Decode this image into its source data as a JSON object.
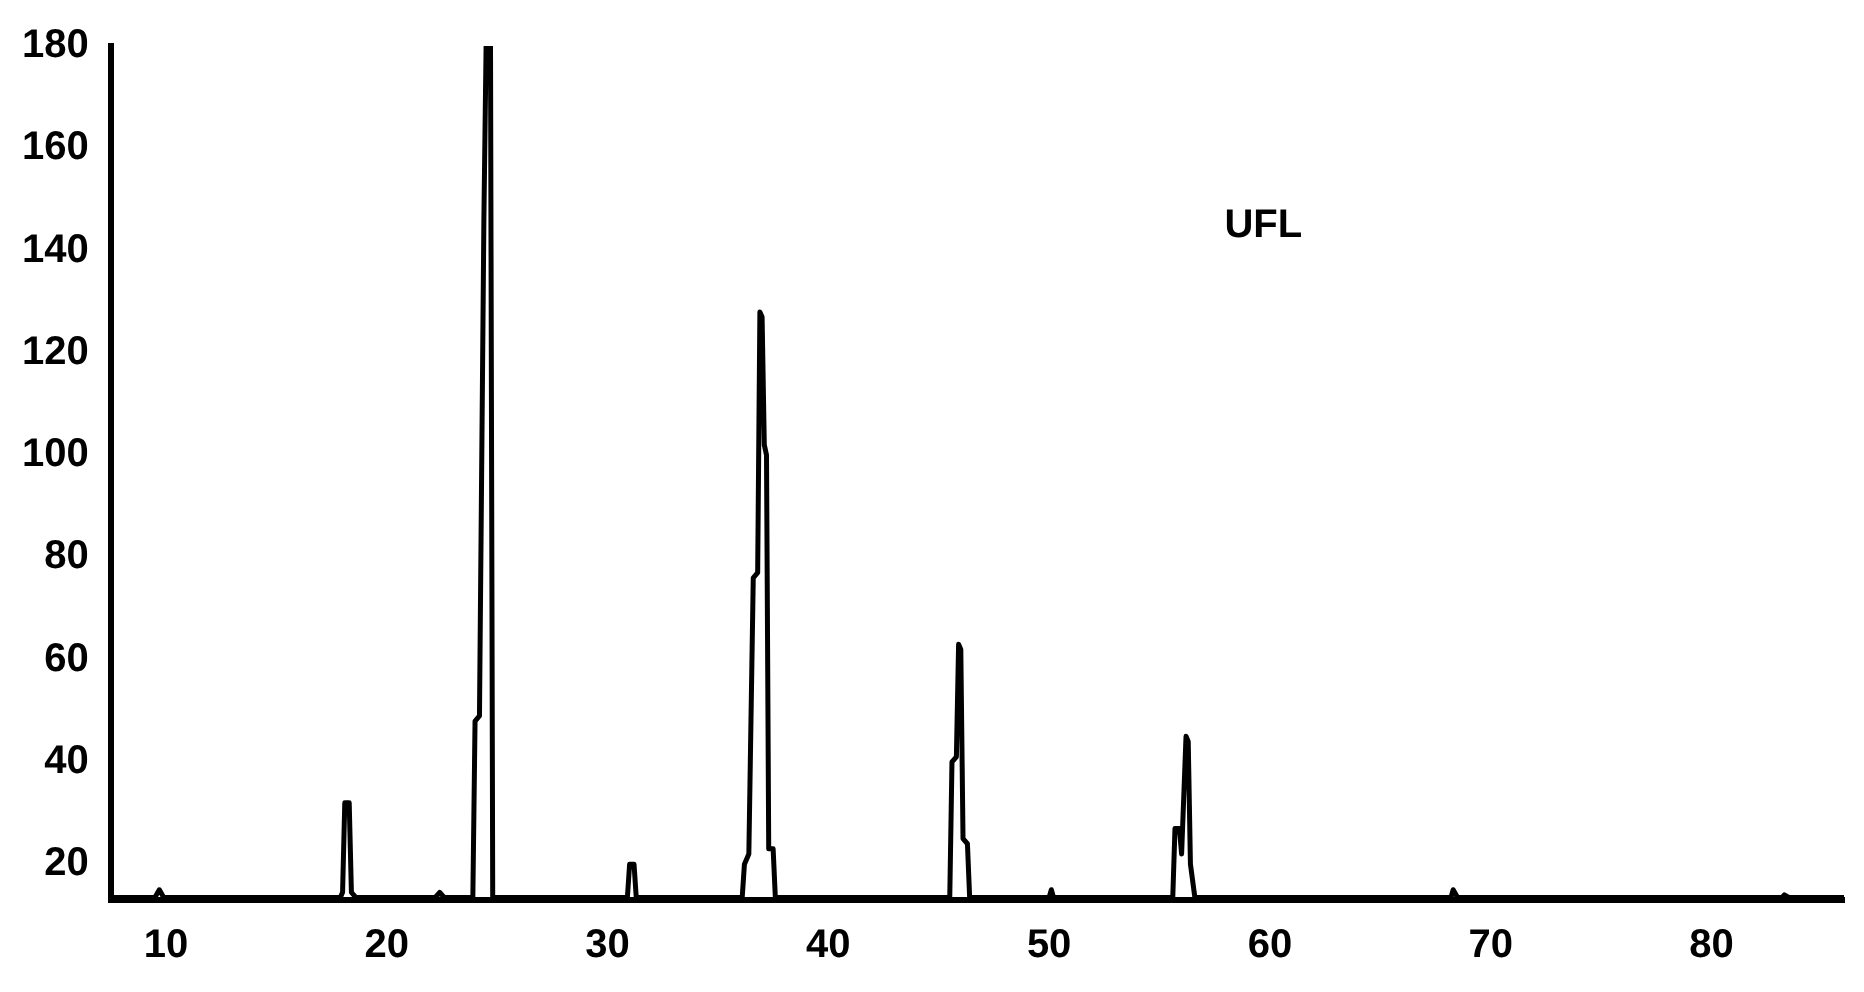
{
  "chart_data": {
    "type": "line",
    "annotations": [
      "UFL"
    ],
    "x": [
      7.5,
      9.5,
      9.7,
      9.9,
      17.9,
      18.0,
      18.1,
      18.3,
      18.4,
      18.6,
      22.2,
      22.4,
      22.6,
      23.9,
      24.0,
      24.2,
      24.4,
      24.5,
      24.7,
      24.8,
      30.9,
      31.0,
      31.2,
      31.3,
      36.1,
      36.2,
      36.4,
      36.6,
      36.8,
      36.9,
      37.0,
      37.1,
      37.2,
      37.3,
      37.5,
      37.6,
      45.5,
      45.6,
      45.8,
      45.9,
      46.0,
      46.1,
      46.3,
      46.4,
      50.0,
      50.1,
      50.2,
      55.6,
      55.7,
      55.9,
      56.0,
      56.2,
      56.3,
      56.4,
      56.6,
      68.2,
      68.3,
      68.5,
      83.2,
      83.3,
      83.5,
      86
    ],
    "series": [
      {
        "color": "#000000",
        "values": [
          13.5,
          13.5,
          15,
          13.5,
          13.5,
          14.5,
          32,
          32,
          14.5,
          13.5,
          13.5,
          14.5,
          13.5,
          13.5,
          48,
          49,
          146,
          180,
          180,
          13.5,
          13.5,
          20,
          20,
          13.5,
          13.5,
          20,
          22,
          76,
          77,
          128,
          127,
          102,
          100,
          23,
          23,
          13.5,
          13.5,
          40,
          41,
          63,
          62,
          25,
          24,
          13.5,
          13.5,
          15,
          13.5,
          13.5,
          27,
          27,
          22,
          45,
          44,
          20,
          13.5,
          13.5,
          15,
          13.5,
          13.5,
          14,
          13.5,
          13.5
        ]
      }
    ],
    "xlim": [
      7.5,
      86
    ],
    "xticks": [
      10,
      20,
      30,
      40,
      50,
      60,
      70,
      80
    ],
    "ylim": [
      13,
      180
    ],
    "yticks": [
      20,
      40,
      60,
      80,
      100,
      120,
      140,
      160,
      180
    ],
    "grid": false,
    "legend": false,
    "marker": "none",
    "line_style": "solid"
  }
}
